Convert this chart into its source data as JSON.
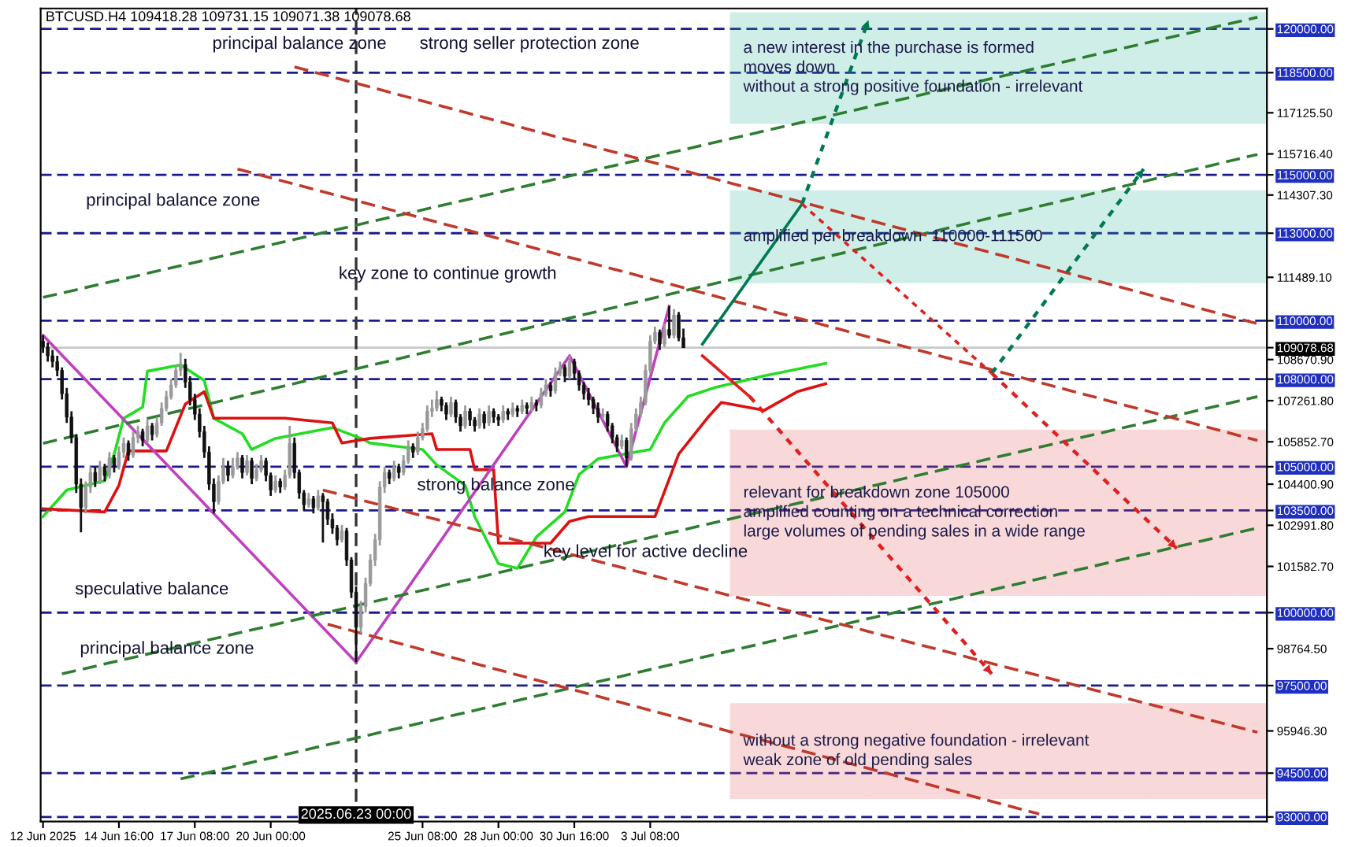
{
  "chart_data": {
    "type": "candlestick",
    "title": "BTCUSD.H4 109418.28 109731.15 109071.38 109078.68",
    "x": [
      "2025-06-12T00:00",
      "2025-06-12T04:00",
      "2025-06-12T08:00",
      "2025-06-12T12:00",
      "2025-06-12T16:00",
      "2025-06-12T20:00",
      "2025-06-13T00:00",
      "2025-06-13T04:00",
      "2025-06-13T08:00",
      "2025-06-13T12:00",
      "2025-06-13T16:00",
      "2025-06-13T20:00",
      "2025-06-14T00:00",
      "2025-06-14T04:00",
      "2025-06-14T08:00",
      "2025-06-14T12:00",
      "2025-06-14T16:00",
      "2025-06-14T20:00",
      "2025-06-15T00:00",
      "2025-06-15T04:00",
      "2025-06-15T08:00",
      "2025-06-15T12:00",
      "2025-06-15T16:00",
      "2025-06-15T20:00",
      "2025-06-16T00:00",
      "2025-06-16T04:00",
      "2025-06-16T08:00",
      "2025-06-16T12:00",
      "2025-06-16T16:00",
      "2025-06-16T20:00",
      "2025-06-17T00:00",
      "2025-06-17T04:00",
      "2025-06-17T08:00",
      "2025-06-17T12:00",
      "2025-06-17T16:00",
      "2025-06-17T20:00",
      "2025-06-18T00:00",
      "2025-06-18T04:00",
      "2025-06-18T08:00",
      "2025-06-18T12:00",
      "2025-06-18T16:00",
      "2025-06-18T20:00",
      "2025-06-19T00:00",
      "2025-06-19T04:00",
      "2025-06-19T08:00",
      "2025-06-19T12:00",
      "2025-06-19T16:00",
      "2025-06-19T20:00",
      "2025-06-20T00:00",
      "2025-06-20T04:00",
      "2025-06-20T08:00",
      "2025-06-20T12:00",
      "2025-06-20T16:00",
      "2025-06-20T20:00",
      "2025-06-21T00:00",
      "2025-06-21T04:00",
      "2025-06-21T08:00",
      "2025-06-21T12:00",
      "2025-06-21T16:00",
      "2025-06-21T20:00",
      "2025-06-22T00:00",
      "2025-06-22T04:00",
      "2025-06-22T08:00",
      "2025-06-22T12:00",
      "2025-06-22T16:00",
      "2025-06-22T20:00",
      "2025-06-23T00:00",
      "2025-06-23T04:00",
      "2025-06-23T08:00",
      "2025-06-23T12:00",
      "2025-06-23T16:00",
      "2025-06-23T20:00",
      "2025-06-24T00:00",
      "2025-06-24T04:00",
      "2025-06-24T08:00",
      "2025-06-24T12:00",
      "2025-06-24T16:00",
      "2025-06-24T20:00",
      "2025-06-25T00:00",
      "2025-06-25T04:00",
      "2025-06-25T08:00",
      "2025-06-25T12:00",
      "2025-06-25T16:00",
      "2025-06-25T20:00",
      "2025-06-26T00:00",
      "2025-06-26T04:00",
      "2025-06-26T08:00",
      "2025-06-26T12:00",
      "2025-06-26T16:00",
      "2025-06-26T20:00",
      "2025-06-27T00:00",
      "2025-06-27T04:00",
      "2025-06-27T08:00",
      "2025-06-27T12:00",
      "2025-06-27T16:00",
      "2025-06-27T20:00",
      "2025-06-28T00:00",
      "2025-06-28T04:00",
      "2025-06-28T08:00",
      "2025-06-28T12:00",
      "2025-06-28T16:00",
      "2025-06-28T20:00",
      "2025-06-29T00:00",
      "2025-06-29T04:00",
      "2025-06-29T08:00",
      "2025-06-29T12:00",
      "2025-06-29T16:00",
      "2025-06-29T20:00",
      "2025-06-30T00:00",
      "2025-06-30T04:00",
      "2025-06-30T08:00",
      "2025-06-30T12:00",
      "2025-06-30T16:00",
      "2025-06-30T20:00",
      "2025-07-01T00:00",
      "2025-07-01T04:00",
      "2025-07-01T08:00",
      "2025-07-01T12:00",
      "2025-07-01T16:00",
      "2025-07-01T20:00",
      "2025-07-02T00:00",
      "2025-07-02T04:00",
      "2025-07-02T08:00",
      "2025-07-02T12:00",
      "2025-07-02T16:00",
      "2025-07-02T20:00",
      "2025-07-03T00:00",
      "2025-07-03T04:00",
      "2025-07-03T08:00",
      "2025-07-03T12:00",
      "2025-07-03T16:00",
      "2025-07-03T20:00",
      "2025-07-04T00:00",
      "2025-07-04T04:00",
      "2025-07-04T08:00",
      "2025-07-04T12:00"
    ],
    "ohlc": [
      [
        109300,
        109500,
        108900,
        109100
      ],
      [
        109100,
        109250,
        108600,
        108800
      ],
      [
        108800,
        109000,
        108400,
        108600
      ],
      [
        108600,
        108800,
        108100,
        108300
      ],
      [
        108300,
        108400,
        107300,
        107500
      ],
      [
        107500,
        107700,
        106500,
        106700
      ],
      [
        106700,
        106900,
        105800,
        106000
      ],
      [
        106000,
        106100,
        104100,
        104400
      ],
      [
        104400,
        104600,
        102750,
        103600
      ],
      [
        103600,
        104500,
        103400,
        104300
      ],
      [
        104300,
        105000,
        104100,
        104800
      ],
      [
        104800,
        105000,
        104300,
        104500
      ],
      [
        104500,
        105200,
        104400,
        105000
      ],
      [
        105000,
        105100,
        104500,
        104700
      ],
      [
        104700,
        105500,
        104600,
        105300
      ],
      [
        105300,
        105400,
        104800,
        105000
      ],
      [
        105000,
        105700,
        104900,
        105500
      ],
      [
        105500,
        106000,
        105300,
        105800
      ],
      [
        105800,
        105900,
        105200,
        105400
      ],
      [
        105400,
        106200,
        105300,
        106000
      ],
      [
        106000,
        106400,
        105800,
        106200
      ],
      [
        106200,
        106300,
        105700,
        105900
      ],
      [
        105900,
        106600,
        105800,
        106400
      ],
      [
        106400,
        106500,
        105900,
        106100
      ],
      [
        106100,
        106700,
        106000,
        106500
      ],
      [
        106500,
        107200,
        106400,
        107000
      ],
      [
        107000,
        107600,
        106900,
        107400
      ],
      [
        107400,
        108000,
        107300,
        107800
      ],
      [
        107800,
        108500,
        107700,
        108300
      ],
      [
        108300,
        108900,
        108100,
        108500
      ],
      [
        108500,
        108700,
        107700,
        107900
      ],
      [
        107900,
        108100,
        107100,
        107300
      ],
      [
        107300,
        107500,
        106600,
        106800
      ],
      [
        106800,
        107000,
        106000,
        106200
      ],
      [
        106200,
        106400,
        105300,
        105500
      ],
      [
        105500,
        105700,
        104200,
        104400
      ],
      [
        104400,
        104600,
        103400,
        103800
      ],
      [
        103800,
        104700,
        103700,
        104500
      ],
      [
        104500,
        105300,
        104400,
        105000
      ],
      [
        105000,
        105200,
        104500,
        104700
      ],
      [
        104700,
        105300,
        104600,
        105000
      ],
      [
        105000,
        105500,
        104900,
        105300
      ],
      [
        105300,
        105400,
        104600,
        104800
      ],
      [
        104800,
        105400,
        104700,
        105200
      ],
      [
        105200,
        105300,
        104400,
        104600
      ],
      [
        104600,
        105100,
        104500,
        104900
      ],
      [
        104900,
        105400,
        104800,
        105200
      ],
      [
        105200,
        105300,
        104500,
        104700
      ],
      [
        104700,
        104800,
        104000,
        104200
      ],
      [
        104200,
        104700,
        104100,
        104500
      ],
      [
        104500,
        104600,
        104100,
        104300
      ],
      [
        104300,
        104900,
        104200,
        104700
      ],
      [
        104700,
        106400,
        104600,
        105800
      ],
      [
        105800,
        106000,
        104600,
        104800
      ],
      [
        104800,
        104900,
        103900,
        104100
      ],
      [
        104100,
        104200,
        103500,
        103700
      ],
      [
        103700,
        104100,
        103600,
        103900
      ],
      [
        103900,
        104000,
        103400,
        103600
      ],
      [
        103600,
        104200,
        103500,
        104000
      ],
      [
        104000,
        104100,
        102400,
        103800
      ],
      [
        103800,
        103900,
        103000,
        103200
      ],
      [
        103200,
        103400,
        102700,
        102900
      ],
      [
        102900,
        103000,
        102300,
        102500
      ],
      [
        102500,
        103000,
        102400,
        102800
      ],
      [
        102800,
        102900,
        101600,
        101800
      ],
      [
        101800,
        101900,
        100500,
        100700
      ],
      [
        100700,
        100900,
        98300,
        99500
      ],
      [
        99500,
        100400,
        99300,
        100200
      ],
      [
        100200,
        101200,
        100000,
        101000
      ],
      [
        101000,
        102000,
        100900,
        101800
      ],
      [
        101800,
        102700,
        101600,
        102500
      ],
      [
        102500,
        104500,
        102300,
        104300
      ],
      [
        104300,
        105000,
        104100,
        104800
      ],
      [
        104800,
        104900,
        104400,
        104600
      ],
      [
        104600,
        105200,
        104500,
        105000
      ],
      [
        105000,
        105100,
        104600,
        104800
      ],
      [
        104800,
        105400,
        104700,
        105200
      ],
      [
        105200,
        105900,
        105100,
        105700
      ],
      [
        105700,
        105800,
        105300,
        105500
      ],
      [
        105500,
        106200,
        105400,
        106000
      ],
      [
        106000,
        106500,
        105900,
        106300
      ],
      [
        106300,
        107100,
        106200,
        106900
      ],
      [
        106900,
        107300,
        106700,
        107000
      ],
      [
        107000,
        107600,
        106900,
        107300
      ],
      [
        107300,
        107400,
        106900,
        107100
      ],
      [
        107100,
        107200,
        106600,
        106800
      ],
      [
        106800,
        107400,
        106700,
        107200
      ],
      [
        107200,
        107300,
        106500,
        106700
      ],
      [
        106700,
        106800,
        106200,
        106400
      ],
      [
        106400,
        107100,
        106300,
        106900
      ],
      [
        106900,
        107000,
        106400,
        106600
      ],
      [
        106600,
        106700,
        106200,
        106400
      ],
      [
        106400,
        107000,
        106300,
        106800
      ],
      [
        106800,
        106900,
        106300,
        106500
      ],
      [
        106500,
        107100,
        106400,
        106900
      ],
      [
        106900,
        107000,
        106500,
        106700
      ],
      [
        106700,
        106800,
        106400,
        106600
      ],
      [
        106600,
        107100,
        106500,
        106900
      ],
      [
        106900,
        107000,
        106600,
        106800
      ],
      [
        106800,
        107200,
        106700,
        107000
      ],
      [
        107000,
        107100,
        106700,
        106900
      ],
      [
        106900,
        107300,
        106800,
        107100
      ],
      [
        107100,
        107200,
        106800,
        107000
      ],
      [
        107000,
        107400,
        106900,
        107200
      ],
      [
        107200,
        107300,
        106900,
        107100
      ],
      [
        107100,
        107700,
        107000,
        107500
      ],
      [
        107500,
        108000,
        107400,
        107800
      ],
      [
        107800,
        107900,
        107400,
        107600
      ],
      [
        107600,
        108400,
        107500,
        108200
      ],
      [
        108200,
        108600,
        108100,
        108400
      ],
      [
        108400,
        108500,
        107900,
        108100
      ],
      [
        108100,
        108800,
        108000,
        108600
      ],
      [
        108600,
        108700,
        108000,
        108200
      ],
      [
        108200,
        108300,
        107600,
        107800
      ],
      [
        107800,
        107900,
        107300,
        107500
      ],
      [
        107500,
        107700,
        107100,
        107300
      ],
      [
        107300,
        107400,
        106800,
        107000
      ],
      [
        107000,
        107200,
        106500,
        106700
      ],
      [
        106700,
        107000,
        106600,
        106800
      ],
      [
        106800,
        106900,
        106200,
        106400
      ],
      [
        106400,
        106500,
        105800,
        106000
      ],
      [
        106000,
        106100,
        105500,
        105700
      ],
      [
        105700,
        106100,
        105600,
        105900
      ],
      [
        105900,
        106000,
        105000,
        105300
      ],
      [
        105300,
        106500,
        105200,
        106300
      ],
      [
        106300,
        107000,
        106200,
        106800
      ],
      [
        106800,
        107400,
        106700,
        107200
      ],
      [
        107200,
        108500,
        107100,
        108300
      ],
      [
        108300,
        109500,
        108200,
        109300
      ],
      [
        109300,
        109800,
        109200,
        109600
      ],
      [
        109600,
        109700,
        109000,
        109200
      ],
      [
        109200,
        109900,
        109100,
        109700
      ],
      [
        109700,
        110500,
        109400,
        109500
      ],
      [
        109500,
        110400,
        109400,
        110200
      ],
      [
        110200,
        110300,
        109300,
        109418.28
      ],
      [
        109418.28,
        109731.15,
        109071.38,
        109078.68
      ]
    ],
    "series": [
      {
        "type": "line",
        "color": "#22dd22",
        "line_style": "solid",
        "x": [
          "2025-06-12T00:00",
          "2025-06-12T20:00",
          "2025-06-14T04:00",
          "2025-06-14T12:00",
          "2025-06-14T20:00",
          "2025-06-15T12:00",
          "2025-06-15T16:00",
          "2025-06-16T20:00",
          "2025-06-17T16:00",
          "2025-06-18T00:00",
          "2025-06-19T00:00",
          "2025-06-19T08:00",
          "2025-06-20T04:00",
          "2025-06-22T04:00",
          "2025-06-23T04:00",
          "2025-06-23T12:00",
          "2025-06-25T08:00",
          "2025-06-25T20:00",
          "2025-06-26T20:00",
          "2025-06-27T04:00",
          "2025-06-28T00:00",
          "2025-06-28T16:00",
          "2025-06-29T08:00",
          "2025-06-30T08:00",
          "2025-06-30T20:00",
          "2025-07-01T12:00",
          "2025-07-03T08:00",
          "2025-07-03T20:00",
          "2025-07-04T16:00",
          "2025-07-05T16:00",
          "2025-07-07T08:00",
          "2025-07-09T12:00"
        ],
        "values": [
          103290,
          104200,
          104520,
          105430,
          106660,
          107040,
          108270,
          108490,
          107950,
          106660,
          106130,
          105590,
          105970,
          106340,
          105970,
          105810,
          105590,
          105060,
          104360,
          103290,
          101680,
          101520,
          102590,
          103450,
          104730,
          105270,
          105590,
          106500,
          107410,
          107730,
          108110,
          108540
        ]
      },
      {
        "type": "line",
        "color": "#dd1111",
        "line_style": "solid",
        "x": [
          "2025-06-12T00:00",
          "2025-06-14T04:00",
          "2025-06-14T16:00",
          "2025-06-15T00:00",
          "2025-06-16T08:00",
          "2025-06-17T00:00",
          "2025-06-17T16:00",
          "2025-06-18T00:00",
          "2025-06-20T12:00",
          "2025-06-22T04:00",
          "2025-06-22T12:00",
          "2025-06-23T12:00",
          "2025-06-25T16:00",
          "2025-06-25T20:00",
          "2025-06-27T00:00",
          "2025-06-27T04:00",
          "2025-06-27T20:00",
          "2025-06-28T00:00",
          "2025-06-29T20:00",
          "2025-06-30T12:00",
          "2025-07-01T04:00",
          "2025-07-03T12:00",
          "2025-07-04T08:00",
          "2025-07-05T08:00",
          "2025-07-05T20:00",
          "2025-07-07T08:00",
          "2025-07-08T12:00",
          "2025-07-09T12:00"
        ],
        "values": [
          103560,
          103450,
          104360,
          105540,
          105540,
          107150,
          107570,
          106660,
          106660,
          106500,
          105810,
          105970,
          106130,
          105590,
          105590,
          104900,
          104900,
          102380,
          102380,
          103130,
          103290,
          103290,
          105430,
          106660,
          107200,
          106930,
          107570,
          107840
        ]
      },
      {
        "type": "line",
        "color": "#c040c0",
        "line_style": "solid",
        "x": [
          "2025-06-12T00:00",
          "2025-06-23T00:00",
          "2025-06-30T12:00",
          "2025-07-02T12:00",
          "2025-07-04T00:00"
        ],
        "values": [
          109500,
          98300,
          108800,
          105000,
          110500
        ]
      },
      {
        "type": "line",
        "color": "#2e7d32",
        "line_style": "dashed",
        "x": [
          "2025-06-12T00:00",
          "2025-07-24T16:00"
        ],
        "values": [
          110800,
          120400
        ]
      },
      {
        "type": "line",
        "color": "#2e7d32",
        "line_style": "dashed",
        "x": [
          "2025-06-12T00:00",
          "2025-07-24T16:00"
        ],
        "values": [
          105800,
          115700
        ]
      },
      {
        "type": "line",
        "color": "#2e7d32",
        "line_style": "dashed",
        "x": [
          "2025-06-12T16:00",
          "2025-07-24T16:00"
        ],
        "values": [
          97900,
          107400
        ]
      },
      {
        "type": "line",
        "color": "#2e7d32",
        "line_style": "dashed",
        "x": [
          "2025-06-16T20:00",
          "2025-07-24T16:00"
        ],
        "values": [
          94300,
          102900
        ]
      },
      {
        "type": "line",
        "color": "#c0392b",
        "line_style": "dashed",
        "x": [
          "2025-06-20T20:00",
          "2025-07-24T16:00"
        ],
        "values": [
          118700,
          109900
        ]
      },
      {
        "type": "line",
        "color": "#c0392b",
        "line_style": "dashed",
        "x": [
          "2025-06-18T20:00",
          "2025-07-24T16:00"
        ],
        "values": [
          115200,
          105900
        ]
      },
      {
        "type": "line",
        "color": "#c0392b",
        "line_style": "dashed",
        "x": [
          "2025-06-21T20:00",
          "2025-07-24T16:00"
        ],
        "values": [
          104200,
          95900
        ]
      },
      {
        "type": "line",
        "color": "#c0392b",
        "line_style": "dashed",
        "x": [
          "2025-06-22T00:00",
          "2025-07-17T00:00"
        ],
        "values": [
          99600,
          93100
        ]
      },
      {
        "type": "line",
        "color": "#007a50",
        "line_style": "solid",
        "x": [
          "2025-07-05T04:00",
          "2025-07-08T16:00"
        ],
        "values": [
          109200,
          114000
        ]
      },
      {
        "type": "line",
        "color": "#007a50",
        "line_style": "dotted",
        "x": [
          "2025-07-08T16:00",
          "2025-07-11T00:00"
        ],
        "values": [
          114000,
          120300
        ]
      },
      {
        "type": "line",
        "color": "#e02020",
        "line_style": "dotted",
        "x": [
          "2025-07-08T16:00",
          "2025-07-15T08:00"
        ],
        "values": [
          114000,
          108200
        ]
      },
      {
        "type": "line",
        "color": "#007a50",
        "line_style": "dotted",
        "x": [
          "2025-07-15T08:00",
          "2025-07-20T16:00"
        ],
        "values": [
          108200,
          115200
        ]
      },
      {
        "type": "line",
        "color": "#e02020",
        "line_style": "dotted",
        "x": [
          "2025-07-15T08:00",
          "2025-07-21T20:00"
        ],
        "values": [
          108200,
          102200
        ]
      },
      {
        "type": "line",
        "color": "#e02020",
        "line_style": "solid",
        "x": [
          "2025-07-05T04:00",
          "2025-07-06T20:00"
        ],
        "values": [
          108800,
          107400
        ]
      },
      {
        "type": "line",
        "color": "#e02020",
        "line_style": "dotted",
        "x": [
          "2025-07-06T20:00",
          "2025-07-15T08:00"
        ],
        "values": [
          107400,
          97900
        ]
      }
    ],
    "bands": [
      {
        "axis": "y",
        "from": 116786,
        "to": 120535,
        "color": "#2bb39a",
        "label": "a new interest in the purchase is formed\nmoves down\nwithout a strong positive foundation - irrelevant"
      },
      {
        "axis": "y",
        "from": 111323,
        "to": 114430,
        "color": "#2bb39a",
        "label": "amplified per breakdown  110000-111500"
      },
      {
        "axis": "y",
        "from": 100611,
        "to": 106235,
        "color": "#e05050",
        "label": "relevant for breakdown zone 105000\namplified counting on a technical correction\nlarge volumes of pending sales in a wide range"
      },
      {
        "axis": "y",
        "from": 93649,
        "to": 96862,
        "color": "#e05050",
        "label": "without a strong negative foundation - irrelevant\nweak zone of old pending sales"
      }
    ],
    "ref_lines": [
      {
        "axis": "y",
        "value": 120000,
        "color": "#1a1a8c",
        "line_style": "dashed"
      },
      {
        "axis": "y",
        "value": 118500,
        "color": "#1a1a8c",
        "line_style": "dashed"
      },
      {
        "axis": "y",
        "value": 115000,
        "color": "#1a1a8c",
        "line_style": "dashed"
      },
      {
        "axis": "y",
        "value": 113000,
        "color": "#1a1a8c",
        "line_style": "dashed"
      },
      {
        "axis": "y",
        "value": 110000,
        "color": "#1a1a8c",
        "line_style": "dashed"
      },
      {
        "axis": "y",
        "value": 109078.68,
        "color": "#c8c8c8",
        "line_style": "solid"
      },
      {
        "axis": "y",
        "value": 108000,
        "color": "#1a1a8c",
        "line_style": "dashed"
      },
      {
        "axis": "y",
        "value": 105000,
        "color": "#1a1a8c",
        "line_style": "dashed"
      },
      {
        "axis": "y",
        "value": 103500,
        "color": "#1a1a8c",
        "line_style": "dashed"
      },
      {
        "axis": "y",
        "value": 100000,
        "color": "#1a1a8c",
        "line_style": "dashed"
      },
      {
        "axis": "y",
        "value": 97500,
        "color": "#1a1a8c",
        "line_style": "dashed"
      },
      {
        "axis": "y",
        "value": 94500,
        "color": "#1a1a8c",
        "line_style": "dashed"
      },
      {
        "axis": "y",
        "value": 93000,
        "color": "#1a1a8c",
        "line_style": "dashed"
      },
      {
        "axis": "x",
        "value": "2025-06-23T00:00",
        "label": "2025.06.23 00:00",
        "color": "#333333",
        "line_style": "dashed"
      }
    ],
    "annotations": [
      "principal balance zone",
      "strong seller protection zone",
      "principal balance zone",
      "key zone to continue growth",
      "strong balance zone",
      "key level for active decline",
      "speculative balance",
      "principal balance zone"
    ],
    "xlim": [
      "2025-06-11T22:00",
      "2025-07-25T00:00"
    ],
    "xticks": [
      {
        "value": "2025-06-12T00:00",
        "label": "12 Jun 2025"
      },
      {
        "value": "2025-06-14T16:00",
        "label": "14 Jun 16:00"
      },
      {
        "value": "2025-06-17T08:00",
        "label": "17 Jun 08:00"
      },
      {
        "value": "2025-06-20T00:00",
        "label": "20 Jun 00:00"
      },
      {
        "value": "2025-06-25T08:00",
        "label": "25 Jun 08:00"
      },
      {
        "value": "2025-06-28T00:00",
        "label": "28 Jun 00:00"
      },
      {
        "value": "2025-06-30T16:00",
        "label": "30 Jun 16:00"
      },
      {
        "value": "2025-07-03T08:00",
        "label": "3 Jul 08:00"
      }
    ],
    "ylim": [
      92840,
      120700
    ],
    "yticks": [
      {
        "value": 120000,
        "label": "120000.00"
      },
      {
        "value": 118500,
        "label": "118500.00"
      },
      {
        "value": 117125.5,
        "label": "117125.50"
      },
      {
        "value": 115716.4,
        "label": "115716.40"
      },
      {
        "value": 115000,
        "label": "115000.00"
      },
      {
        "value": 114307.3,
        "label": "114307.30"
      },
      {
        "value": 113000,
        "label": "113000.00"
      },
      {
        "value": 111489.1,
        "label": "111489.10"
      },
      {
        "value": 110000,
        "label": "110000.00"
      },
      {
        "value": 109078.68,
        "label": "109078.68"
      },
      {
        "value": 108670.9,
        "label": "108670.90"
      },
      {
        "value": 108000,
        "label": "108000.00"
      },
      {
        "value": 107261.8,
        "label": "107261.80"
      },
      {
        "value": 105852.7,
        "label": "105852.70"
      },
      {
        "value": 105000,
        "label": "105000.00"
      },
      {
        "value": 104400.9,
        "label": "104400.90"
      },
      {
        "value": 103500,
        "label": "103500.00"
      },
      {
        "value": 102991.8,
        "label": "102991.80"
      },
      {
        "value": 101582.7,
        "label": "101582.70"
      },
      {
        "value": 100000,
        "label": "100000.00"
      },
      {
        "value": 98764.5,
        "label": "98764.50"
      },
      {
        "value": 97500,
        "label": "97500.00"
      },
      {
        "value": 95946.3,
        "label": "95946.30"
      },
      {
        "value": 94500,
        "label": "94500.00"
      },
      {
        "value": 93000,
        "label": "93000.00"
      }
    ],
    "grid": false
  }
}
